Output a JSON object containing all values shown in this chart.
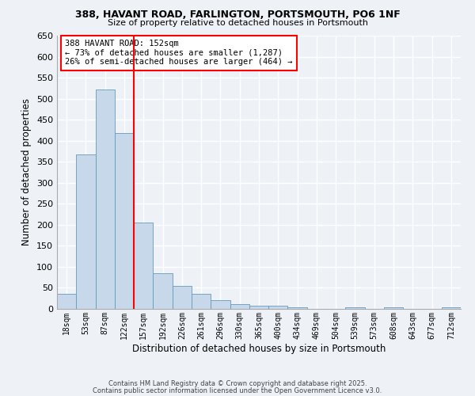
{
  "title": "388, HAVANT ROAD, FARLINGTON, PORTSMOUTH, PO6 1NF",
  "subtitle": "Size of property relative to detached houses in Portsmouth",
  "xlabel": "Distribution of detached houses by size in Portsmouth",
  "ylabel": "Number of detached properties",
  "bar_color": "#c8d8eb",
  "bar_edge_color": "#6699bb",
  "background_color": "#eef2f7",
  "grid_color": "#ffffff",
  "bin_labels": [
    "18sqm",
    "53sqm",
    "87sqm",
    "122sqm",
    "157sqm",
    "192sqm",
    "226sqm",
    "261sqm",
    "296sqm",
    "330sqm",
    "365sqm",
    "400sqm",
    "434sqm",
    "469sqm",
    "504sqm",
    "539sqm",
    "573sqm",
    "608sqm",
    "643sqm",
    "677sqm",
    "712sqm"
  ],
  "bar_heights": [
    35,
    368,
    522,
    418,
    205,
    84,
    55,
    36,
    20,
    11,
    8,
    8,
    4,
    0,
    0,
    3,
    0,
    4,
    0,
    0,
    3
  ],
  "ylim": [
    0,
    650
  ],
  "yticks": [
    0,
    50,
    100,
    150,
    200,
    250,
    300,
    350,
    400,
    450,
    500,
    550,
    600,
    650
  ],
  "marker_line_bin_index": 4,
  "annotation_title": "388 HAVANT ROAD: 152sqm",
  "annotation_line1": "← 73% of detached houses are smaller (1,287)",
  "annotation_line2": "26% of semi-detached houses are larger (464) →",
  "footnote1": "Contains HM Land Registry data © Crown copyright and database right 2025.",
  "footnote2": "Contains public sector information licensed under the Open Government Licence v3.0."
}
